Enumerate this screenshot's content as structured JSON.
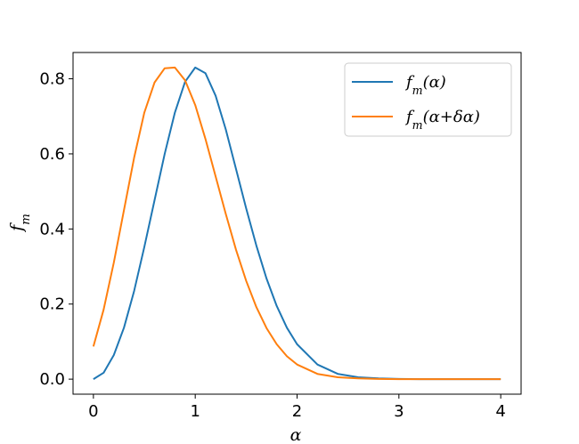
{
  "chart_data": {
    "type": "line",
    "title": "",
    "xlabel": "α",
    "ylabel": "f_m",
    "xlim": [
      -0.2,
      4.2
    ],
    "ylim": [
      -0.04,
      0.87
    ],
    "x_ticks": [
      0,
      1,
      2,
      3,
      4
    ],
    "x_tick_labels": [
      "0",
      "1",
      "2",
      "3",
      "4"
    ],
    "y_ticks": [
      0.0,
      0.2,
      0.4,
      0.6,
      0.8
    ],
    "y_tick_labels": [
      "0.0",
      "0.2",
      "0.4",
      "0.6",
      "0.8"
    ],
    "grid": false,
    "legend": {
      "position": "top-right"
    },
    "series": [
      {
        "name": "f_m(α)",
        "color": "#1f77b4",
        "x": [
          0.0,
          0.1,
          0.2,
          0.3,
          0.4,
          0.5,
          0.6,
          0.7,
          0.8,
          0.9,
          1.0,
          1.1,
          1.2,
          1.3,
          1.4,
          1.5,
          1.6,
          1.7,
          1.8,
          1.9,
          2.0,
          2.2,
          2.4,
          2.6,
          2.8,
          3.0,
          3.2,
          3.5,
          4.0
        ],
        "y": [
          0.0,
          0.017,
          0.064,
          0.137,
          0.235,
          0.352,
          0.476,
          0.6,
          0.71,
          0.792,
          0.83,
          0.815,
          0.755,
          0.665,
          0.56,
          0.455,
          0.356,
          0.268,
          0.195,
          0.137,
          0.093,
          0.039,
          0.014,
          0.005,
          0.002,
          0.0005,
          0.0001,
          0.0,
          0.0
        ]
      },
      {
        "name": "f_m(α+δα)",
        "color": "#ff7f0e",
        "x": [
          0.0,
          0.1,
          0.2,
          0.3,
          0.4,
          0.5,
          0.6,
          0.7,
          0.8,
          0.9,
          1.0,
          1.1,
          1.2,
          1.3,
          1.4,
          1.5,
          1.6,
          1.7,
          1.8,
          1.9,
          2.0,
          2.2,
          2.4,
          2.6,
          2.8,
          3.0,
          3.2,
          3.5,
          4.0
        ],
        "y": [
          0.087,
          0.185,
          0.31,
          0.45,
          0.59,
          0.71,
          0.79,
          0.828,
          0.83,
          0.796,
          0.73,
          0.64,
          0.54,
          0.44,
          0.345,
          0.262,
          0.192,
          0.136,
          0.093,
          0.061,
          0.039,
          0.014,
          0.005,
          0.002,
          0.0005,
          0.0001,
          0.0,
          0.0,
          0.0
        ]
      }
    ]
  }
}
